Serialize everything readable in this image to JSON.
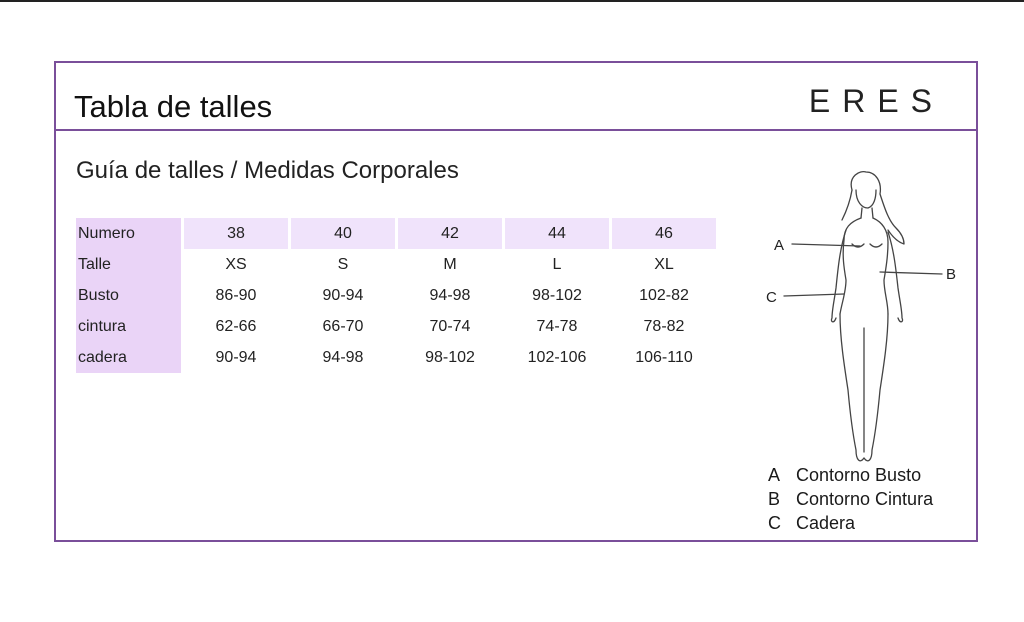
{
  "title": "Tabla de talles",
  "brand": "ERES",
  "subtitle": "Guía de talles / Medidas Corporales",
  "table": {
    "header_label": "Numero",
    "columns": [
      "38",
      "40",
      "42",
      "44",
      "46"
    ],
    "rows": [
      {
        "label": "Talle",
        "values": [
          "XS",
          "S",
          "M",
          "L",
          "XL"
        ]
      },
      {
        "label": "Busto",
        "values": [
          "86-90",
          "90-94",
          "94-98",
          "98-102",
          "102-82"
        ]
      },
      {
        "label": "cintura",
        "values": [
          "62-66",
          "66-70",
          "70-74",
          "74-78",
          "78-82"
        ]
      },
      {
        "label": "cadera",
        "values": [
          "90-94",
          "94-98",
          "98-102",
          "102-106",
          "106-110"
        ]
      }
    ]
  },
  "figure": {
    "marker_a": "A",
    "marker_b": "B",
    "marker_c": "C"
  },
  "legend": [
    {
      "key": "A",
      "text": "Contorno Busto"
    },
    {
      "key": "B",
      "text": "Contorno Cintura"
    },
    {
      "key": "C",
      "text": "Cadera"
    }
  ],
  "colors": {
    "frame": "#7a4f9a",
    "label_fill": "#ead4f7",
    "header_fill": "#f0e3fb"
  }
}
